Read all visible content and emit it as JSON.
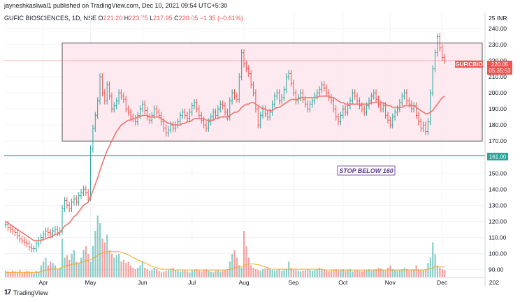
{
  "header": {
    "publish_line": "jayneshkasliwal1 published on TradingView.com, Dec 10, 2021 09:54 UTC+5:30"
  },
  "legend": {
    "symbol_line": "GUFIC BIOSCIENCES, 1D, NSE",
    "o_key": "O",
    "o_val": "221.20",
    "h_key": "H",
    "h_val": "223.75",
    "l_key": "L",
    "l_val": "217.95",
    "c_key": "C",
    "c_val": "220.05",
    "chg": "−1.35 (−0.61%)"
  },
  "price_tag": {
    "ticker": "GUFICBIO",
    "price": "220.05",
    "countdown": "05:35:53"
  },
  "support_tag": "161.00",
  "annotation": "STOP BELOW 160",
  "footer": {
    "logo_text": "TradingView"
  },
  "colors": {
    "up": "#26a69a",
    "down": "#ef5350",
    "ma": "#f0746b",
    "vol_ma": "#f5a623",
    "support": "#26a69a",
    "box_fill": "#fce4ec",
    "box_border": "#555555"
  },
  "chart_data": {
    "type": "candlestick",
    "y_axis": {
      "min": 85,
      "max": 250,
      "ticks": [
        240,
        230,
        220,
        210,
        200,
        190,
        180,
        170,
        160,
        150,
        140,
        130,
        120,
        110,
        100,
        90
      ],
      "top_label": "25 INR"
    },
    "x_axis": {
      "labels": [
        "Apr",
        "May",
        "Jun",
        "Jul",
        "Aug",
        "Sep",
        "Oct",
        "Nov",
        "Dec",
        "202"
      ],
      "positions": [
        16,
        36,
        58,
        79,
        101,
        122,
        143,
        163,
        185,
        207
      ],
      "total_bars": 210
    },
    "close": [
      118,
      116,
      115,
      114,
      113,
      111,
      109,
      108,
      107,
      106,
      104,
      103,
      103,
      106,
      108,
      110,
      112,
      114,
      113,
      112,
      114,
      115,
      113,
      114,
      128,
      133,
      130,
      128,
      132,
      134,
      132,
      136,
      138,
      140,
      138,
      135,
      165,
      178,
      186,
      195,
      210,
      200,
      195,
      205,
      198,
      190,
      192,
      195,
      200,
      198,
      196,
      190,
      188,
      185,
      184,
      182,
      186,
      190,
      193,
      189,
      185,
      183,
      186,
      190,
      188,
      186,
      182,
      178,
      175,
      177,
      180,
      178,
      180,
      182,
      186,
      188,
      186,
      184,
      188,
      192,
      194,
      190,
      186,
      183,
      180,
      178,
      182,
      185,
      188,
      186,
      190,
      193,
      192,
      188,
      185,
      195,
      200,
      198,
      196,
      210,
      225,
      218,
      215,
      212,
      205,
      200,
      190,
      180,
      186,
      190,
      187,
      185,
      188,
      193,
      198,
      200,
      195,
      197,
      202,
      210,
      212,
      206,
      200,
      195,
      197,
      200,
      196,
      193,
      190,
      193,
      195,
      198,
      200,
      202,
      205,
      203,
      200,
      197,
      195,
      190,
      185,
      182,
      186,
      190,
      188,
      192,
      195,
      200,
      198,
      195,
      192,
      190,
      188,
      192,
      195,
      198,
      200,
      196,
      193,
      190,
      192,
      186,
      183,
      180,
      185,
      188,
      190,
      194,
      198,
      200,
      195,
      193,
      190,
      192,
      186,
      182,
      178,
      180,
      176,
      182,
      200,
      215,
      225,
      235,
      228,
      222,
      220
    ],
    "volume": [
      8,
      7,
      6,
      8,
      7,
      6,
      9,
      5,
      6,
      8,
      7,
      6,
      5,
      8,
      7,
      15,
      20,
      25,
      15,
      20,
      18,
      15,
      10,
      12,
      50,
      25,
      28,
      22,
      30,
      35,
      20,
      18,
      25,
      35,
      40,
      30,
      20,
      40,
      60,
      80,
      70,
      50,
      45,
      55,
      35,
      30,
      25,
      28,
      30,
      20,
      22,
      18,
      20,
      15,
      12,
      10,
      12,
      15,
      20,
      12,
      10,
      8,
      9,
      12,
      10,
      8,
      6,
      7,
      8,
      9,
      10,
      12,
      9,
      8,
      7,
      8,
      9,
      7,
      6,
      8,
      9,
      10,
      8,
      7,
      9,
      10,
      8,
      7,
      6,
      8,
      9,
      7,
      8,
      9,
      10,
      20,
      30,
      35,
      25,
      15,
      12,
      60,
      40,
      25,
      15,
      12,
      10,
      9,
      8,
      10,
      11,
      12,
      10,
      9,
      8,
      9,
      10,
      8,
      9,
      10,
      20,
      12,
      10,
      9,
      8,
      7,
      8,
      9,
      10,
      9,
      8,
      9,
      10,
      12,
      10,
      9,
      8,
      7,
      8,
      9,
      10,
      8,
      9,
      10,
      8,
      9,
      10,
      7,
      8,
      9,
      8,
      7,
      8,
      9,
      10,
      8,
      9,
      10,
      12,
      11,
      9,
      8,
      12,
      15,
      10,
      9,
      8,
      9,
      10,
      12,
      10,
      8,
      9,
      10,
      15,
      10,
      8,
      9,
      10,
      18,
      25,
      45,
      30,
      15,
      12,
      10,
      9
    ],
    "ma20": [
      120,
      119,
      118,
      117,
      116,
      115,
      114,
      113,
      112,
      111,
      110,
      109,
      108,
      108,
      108,
      108,
      109,
      109,
      110,
      110,
      111,
      112,
      112,
      113,
      115,
      117,
      118,
      119,
      121,
      123,
      124,
      126,
      128,
      130,
      131,
      132,
      135,
      139,
      143,
      147,
      152,
      156,
      160,
      164,
      167,
      170,
      173,
      176,
      178,
      180,
      181,
      182,
      183,
      183,
      184,
      184,
      185,
      185,
      186,
      186,
      186,
      185,
      185,
      185,
      185,
      185,
      184,
      183,
      182,
      181,
      181,
      180,
      180,
      180,
      180,
      181,
      181,
      182,
      182,
      183,
      184,
      184,
      184,
      184,
      184,
      183,
      183,
      183,
      183,
      184,
      184,
      185,
      185,
      185,
      185,
      186,
      187,
      188,
      188,
      189,
      191,
      192,
      193,
      193,
      194,
      194,
      193,
      192,
      191,
      190,
      190,
      189,
      189,
      189,
      190,
      191,
      191,
      192,
      193,
      194,
      195,
      196,
      196,
      196,
      196,
      197,
      197,
      197,
      197,
      197,
      197,
      197,
      197,
      198,
      198,
      198,
      198,
      198,
      197,
      197,
      196,
      195,
      194,
      194,
      193,
      193,
      193,
      193,
      193,
      193,
      193,
      193,
      193,
      193,
      193,
      194,
      194,
      194,
      194,
      194,
      194,
      193,
      192,
      192,
      191,
      191,
      191,
      191,
      191,
      192,
      192,
      192,
      192,
      192,
      191,
      190,
      189,
      188,
      187,
      187,
      188,
      189,
      191,
      193,
      195,
      197,
      198
    ],
    "vol_ma": [
      6,
      6,
      6,
      6,
      6,
      6,
      6,
      6,
      6,
      6,
      6,
      6,
      6,
      6,
      6,
      7,
      8,
      9,
      9,
      10,
      10,
      11,
      11,
      11,
      13,
      14,
      15,
      15,
      16,
      17,
      17,
      18,
      19,
      20,
      21,
      22,
      22,
      24,
      26,
      28,
      30,
      31,
      32,
      33,
      33,
      33,
      33,
      33,
      33,
      32,
      31,
      30,
      29,
      27,
      25,
      24,
      22,
      21,
      20,
      18,
      17,
      15,
      14,
      13,
      12,
      11,
      10,
      10,
      10,
      10,
      10,
      9,
      9,
      9,
      9,
      9,
      9,
      9,
      9,
      9,
      9,
      9,
      9,
      9,
      9,
      9,
      9,
      9,
      9,
      9,
      9,
      9,
      9,
      9,
      9,
      10,
      11,
      12,
      13,
      13,
      13,
      15,
      16,
      17,
      17,
      17,
      16,
      16,
      15,
      14,
      13,
      12,
      11,
      10,
      10,
      10,
      10,
      10,
      10,
      10,
      10,
      10,
      10,
      10,
      10,
      10,
      10,
      10,
      10,
      10,
      10,
      10,
      10,
      10,
      10,
      9,
      9,
      9,
      9,
      9,
      9,
      9,
      9,
      9,
      9,
      9,
      9,
      9,
      9,
      9,
      9,
      9,
      9,
      9,
      9,
      9,
      9,
      9,
      9,
      9,
      9,
      9,
      9,
      9,
      9,
      9,
      9,
      9,
      9,
      9,
      9,
      9,
      9,
      9,
      9,
      9,
      9,
      9,
      9,
      10,
      11,
      12,
      13,
      13,
      13,
      13,
      13
    ],
    "range_box": {
      "top": 231,
      "bottom": 170,
      "start_bar": 24,
      "end_bar": 209
    },
    "support_line": 161,
    "current_price_line": 220.05
  }
}
